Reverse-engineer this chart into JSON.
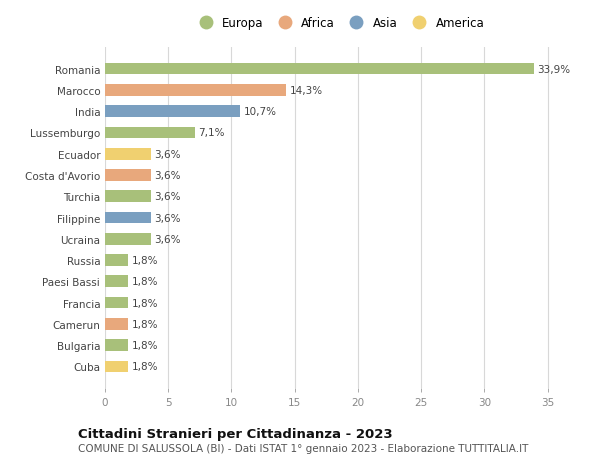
{
  "countries": [
    "Romania",
    "Marocco",
    "India",
    "Lussemburgo",
    "Ecuador",
    "Costa d'Avorio",
    "Turchia",
    "Filippine",
    "Ucraina",
    "Russia",
    "Paesi Bassi",
    "Francia",
    "Camerun",
    "Bulgaria",
    "Cuba"
  ],
  "values": [
    33.9,
    14.3,
    10.7,
    7.1,
    3.6,
    3.6,
    3.6,
    3.6,
    3.6,
    1.8,
    1.8,
    1.8,
    1.8,
    1.8,
    1.8
  ],
  "continents": [
    "Europa",
    "Africa",
    "Asia",
    "Europa",
    "America",
    "Africa",
    "Europa",
    "Asia",
    "Europa",
    "Europa",
    "Europa",
    "Europa",
    "Africa",
    "Europa",
    "America"
  ],
  "continent_colors": {
    "Europa": "#a8c07a",
    "Africa": "#e8a87c",
    "Asia": "#7a9fc0",
    "America": "#f0d070"
  },
  "labels": [
    "33,9%",
    "14,3%",
    "10,7%",
    "7,1%",
    "3,6%",
    "3,6%",
    "3,6%",
    "3,6%",
    "3,6%",
    "1,8%",
    "1,8%",
    "1,8%",
    "1,8%",
    "1,8%",
    "1,8%"
  ],
  "title": "Cittadini Stranieri per Cittadinanza - 2023",
  "subtitle": "COMUNE DI SALUSSOLA (BI) - Dati ISTAT 1° gennaio 2023 - Elaborazione TUTTITALIA.IT",
  "xlim": [
    0,
    37
  ],
  "xticks": [
    0,
    5,
    10,
    15,
    20,
    25,
    30,
    35
  ],
  "legend_order": [
    "Europa",
    "Africa",
    "Asia",
    "America"
  ],
  "background_color": "#ffffff",
  "grid_color": "#d8d8d8",
  "bar_height": 0.55,
  "label_fontsize": 7.5,
  "tick_fontsize": 7.5,
  "title_fontsize": 9.5,
  "subtitle_fontsize": 7.5
}
